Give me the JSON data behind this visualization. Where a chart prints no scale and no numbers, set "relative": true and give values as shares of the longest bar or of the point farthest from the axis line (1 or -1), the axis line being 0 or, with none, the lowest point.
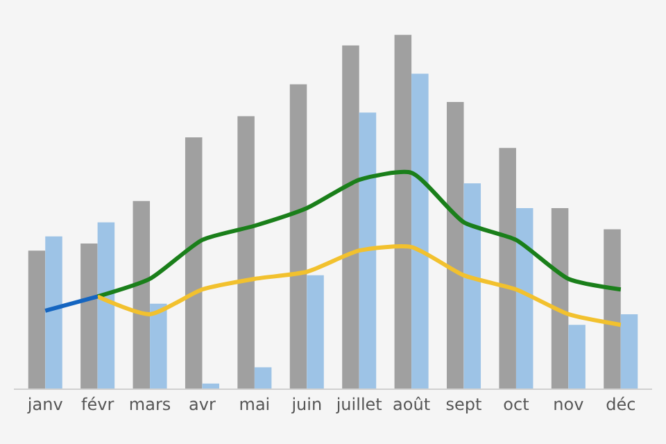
{
  "chart_data": {
    "type": "bar",
    "relative": true,
    "categories": [
      "janv",
      "févr",
      "mars",
      "avr",
      "mai",
      "juin",
      "juillet",
      "août",
      "sept",
      "oct",
      "nov",
      "déc"
    ],
    "series": [
      {
        "color": "#a0a0a0",
        "values": [
          0.39,
          0.41,
          0.53,
          0.71,
          0.77,
          0.86,
          0.97,
          1,
          0.81,
          0.68,
          0.51,
          0.45
        ]
      },
      {
        "color": "#9dc3e6",
        "values": [
          0.43,
          0.47,
          0.24,
          0.014,
          0.06,
          0.32,
          0.78,
          0.89,
          0.58,
          0.51,
          0.18,
          0.21
        ]
      },
      {
        "type": "line",
        "color": "#1a7f1a",
        "values": [
          null,
          0.26,
          0.31,
          0.42,
          0.46,
          0.51,
          0.59,
          0.61,
          0.47,
          0.42,
          0.31,
          0.28
        ]
      },
      {
        "type": "line",
        "color": "#f2c12e",
        "values": [
          null,
          0.26,
          0.21,
          0.28,
          0.31,
          0.33,
          0.39,
          0.4,
          0.32,
          0.28,
          0.21,
          0.18
        ]
      },
      {
        "type": "line",
        "color": "#1565c0",
        "values": [
          0.22,
          0.26,
          null,
          null,
          null,
          null,
          null,
          null,
          null,
          null,
          null,
          null
        ]
      }
    ],
    "grid": false
  }
}
